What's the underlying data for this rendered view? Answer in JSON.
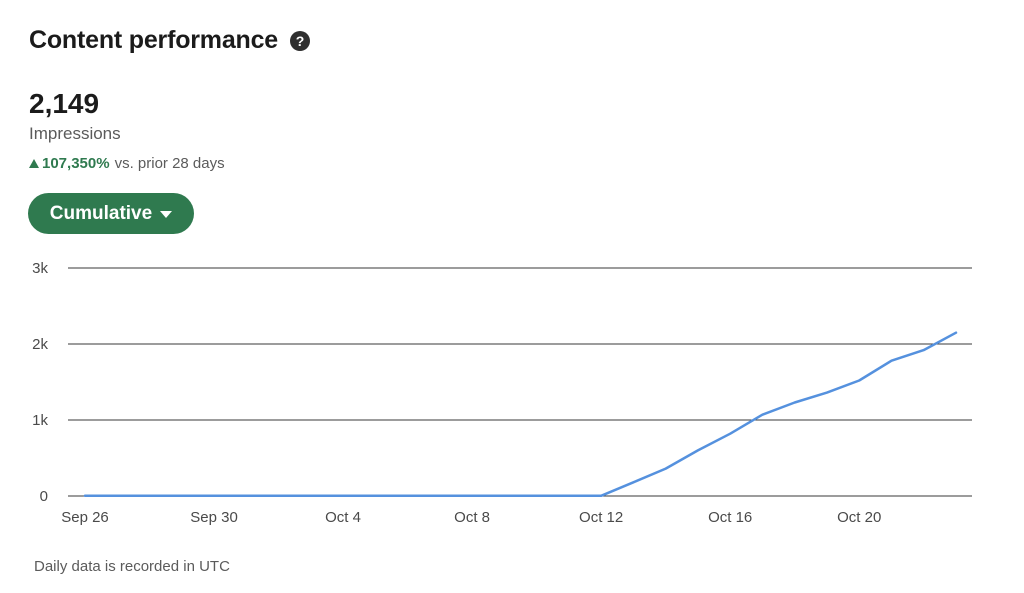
{
  "header": {
    "title": "Content performance",
    "help_icon": "question-circle-icon"
  },
  "metric": {
    "value": "2,149",
    "label": "Impressions",
    "change_icon": "triangle-up-icon",
    "change_value": "107,350%",
    "change_text": "vs. prior 28 days",
    "positive_color": "#2f7a4f"
  },
  "controls": {
    "mode_label": "Cumulative",
    "mode_icon": "caret-down-icon",
    "button_color": "#2f7a4f"
  },
  "chart_data": {
    "type": "line",
    "title": "",
    "xlabel": "",
    "ylabel": "",
    "ylim": [
      0,
      3000
    ],
    "yticks": [
      0,
      1000,
      2000,
      3000
    ],
    "ytick_labels": [
      "0",
      "1k",
      "2k",
      "3k"
    ],
    "xtick_labels": [
      "Sep 26",
      "Sep 30",
      "Oct 4",
      "Oct 8",
      "Oct 12",
      "Oct 16",
      "Oct 20"
    ],
    "grid": true,
    "line_color": "#5591de",
    "x": [
      "Sep 26",
      "Sep 27",
      "Sep 28",
      "Sep 29",
      "Sep 30",
      "Oct 1",
      "Oct 2",
      "Oct 3",
      "Oct 4",
      "Oct 5",
      "Oct 6",
      "Oct 7",
      "Oct 8",
      "Oct 9",
      "Oct 10",
      "Oct 11",
      "Oct 12",
      "Oct 13",
      "Oct 14",
      "Oct 15",
      "Oct 16",
      "Oct 17",
      "Oct 18",
      "Oct 19",
      "Oct 20",
      "Oct 21",
      "Oct 22",
      "Oct 23"
    ],
    "series": [
      {
        "values": [
          2,
          2,
          2,
          2,
          2,
          2,
          2,
          2,
          2,
          2,
          2,
          2,
          2,
          2,
          2,
          2,
          2,
          180,
          360,
          600,
          820,
          1070,
          1230,
          1360,
          1520,
          1780,
          1920,
          2149
        ]
      }
    ]
  },
  "footnote": "Daily data is recorded in UTC"
}
